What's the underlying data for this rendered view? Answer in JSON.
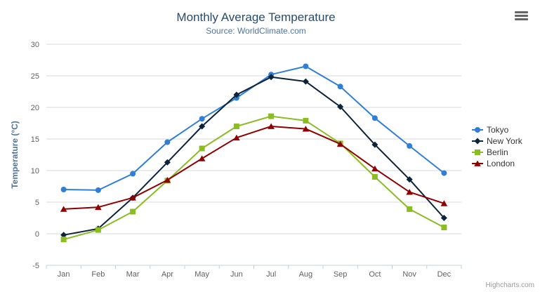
{
  "header": {
    "title": "Monthly Average Temperature",
    "subtitle": "Source: WorldClimate.com"
  },
  "credit": {
    "label": "Highcharts.com"
  },
  "colors": {
    "title": "#274b6d",
    "subtitle": "#4d759e",
    "axis_title": "#4d759e",
    "tick_label": "#606060",
    "gridline": "#d8d8d8",
    "axis_line": "#c0d0e0",
    "legend_text": "#333333",
    "hamburger": "#666666",
    "credit_text": "#999999"
  },
  "chart_data": {
    "type": "line",
    "title": "Monthly Average Temperature",
    "subtitle": "Source: WorldClimate.com",
    "xlabel": "",
    "ylabel": "Temperature (°C)",
    "ylim": [
      -5,
      30
    ],
    "yticks": [
      -5,
      0,
      5,
      10,
      15,
      20,
      25,
      30
    ],
    "grid": true,
    "legend_position": "right",
    "categories": [
      "Jan",
      "Feb",
      "Mar",
      "Apr",
      "May",
      "Jun",
      "Jul",
      "Aug",
      "Sep",
      "Oct",
      "Nov",
      "Dec"
    ],
    "series": [
      {
        "name": "Tokyo",
        "color": "#2f7ed8",
        "marker": "circle",
        "values": [
          7.0,
          6.9,
          9.5,
          14.5,
          18.2,
          21.5,
          25.2,
          26.5,
          23.3,
          18.3,
          13.9,
          9.6
        ]
      },
      {
        "name": "New York",
        "color": "#0d233a",
        "marker": "diamond",
        "values": [
          -0.2,
          0.8,
          5.7,
          11.3,
          17.0,
          22.0,
          24.8,
          24.1,
          20.1,
          14.1,
          8.6,
          2.5
        ]
      },
      {
        "name": "Berlin",
        "color": "#8bbc21",
        "marker": "square",
        "values": [
          -0.9,
          0.6,
          3.5,
          8.4,
          13.5,
          17.0,
          18.6,
          17.9,
          14.3,
          9.0,
          3.9,
          1.0
        ]
      },
      {
        "name": "London",
        "color": "#910000",
        "marker": "triangle",
        "values": [
          3.9,
          4.2,
          5.7,
          8.5,
          11.9,
          15.2,
          17.0,
          16.6,
          14.2,
          10.3,
          6.6,
          4.8
        ]
      }
    ]
  }
}
